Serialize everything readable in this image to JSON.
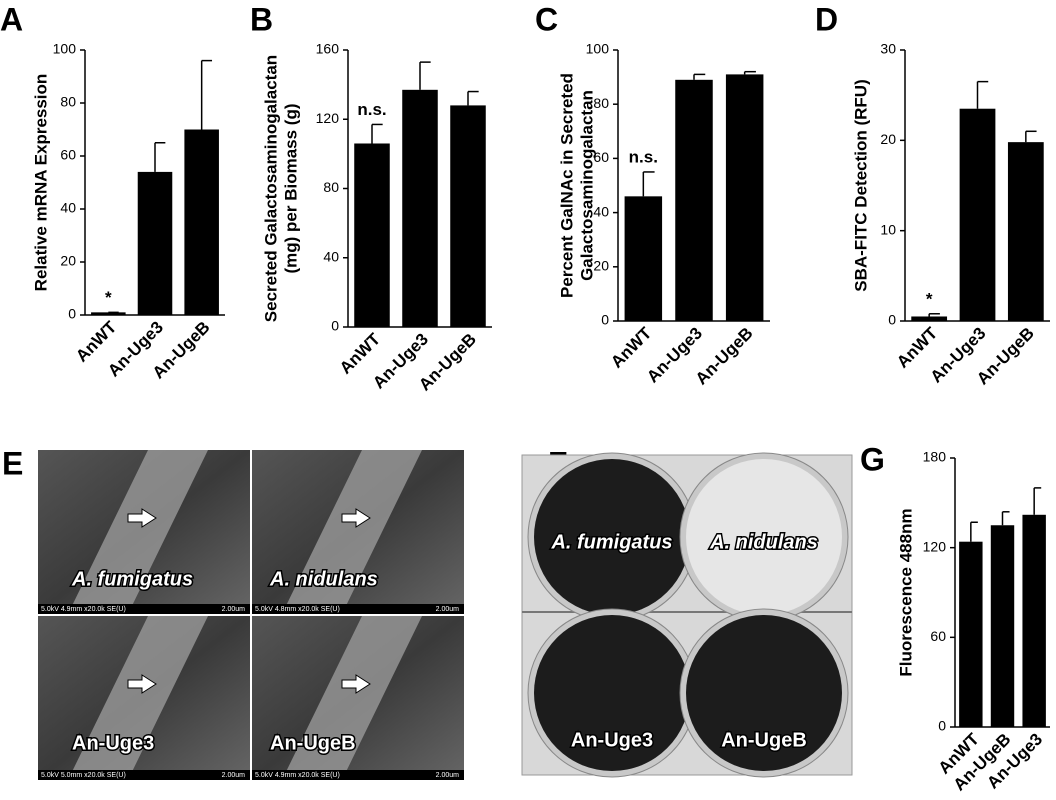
{
  "chart_data": [
    {
      "type": "bar",
      "panel": "A",
      "ylabel": [
        "Relative mRNA Expression"
      ],
      "categories": [
        "AnWT",
        "An-Uge3",
        "An-UgeB"
      ],
      "values": [
        1,
        54,
        70
      ],
      "errors": [
        0,
        11,
        26
      ],
      "annotations": [
        "*",
        null,
        null
      ],
      "color": "#000000",
      "ylim": [
        0,
        100
      ],
      "yticks": [
        0,
        20,
        40,
        60,
        80,
        100
      ]
    },
    {
      "type": "bar",
      "panel": "B",
      "ylabel": [
        "Secreted Galactosaminogalactan",
        "(mg) per Biomass (g)"
      ],
      "categories": [
        "AnWT",
        "An-Uge3",
        "An-UgeB"
      ],
      "values": [
        106,
        137,
        128
      ],
      "errors": [
        11,
        16,
        8
      ],
      "annotations": [
        "n.s.",
        null,
        null
      ],
      "color": "#000000",
      "ylim": [
        0,
        160
      ],
      "yticks": [
        0,
        40,
        80,
        120,
        160
      ]
    },
    {
      "type": "bar",
      "panel": "C",
      "ylabel": [
        "Percent GalNAc in Secreted",
        "Galactosaminogalactan"
      ],
      "categories": [
        "AnWT",
        "An-Uge3",
        "An-UgeB"
      ],
      "values": [
        46,
        89,
        91
      ],
      "errors": [
        9,
        2,
        1
      ],
      "annotations": [
        "n.s.",
        null,
        null
      ],
      "color": "#000000",
      "ylim": [
        0,
        100
      ],
      "yticks": [
        0,
        20,
        40,
        60,
        80,
        100
      ]
    },
    {
      "type": "bar",
      "panel": "D",
      "ylabel": [
        "SBA-FITC Detection (RFU)"
      ],
      "categories": [
        "AnWT",
        "An-Uge3",
        "An-UgeB"
      ],
      "values": [
        0.5,
        23.5,
        19.8
      ],
      "errors": [
        0.3,
        3,
        1.2
      ],
      "annotations": [
        "*",
        null,
        null
      ],
      "color": "#000000",
      "ylim": [
        0,
        30
      ],
      "yticks": [
        0,
        10,
        20,
        30
      ]
    },
    {
      "type": "bar",
      "panel": "G",
      "ylabel": [
        "Fluorescence 488nm"
      ],
      "categories": [
        "AnWT",
        "An-UgeB",
        "An-Uge3"
      ],
      "values": [
        124,
        135,
        142
      ],
      "errors": [
        13,
        9,
        18
      ],
      "annotations": [
        null,
        null,
        null
      ],
      "color": "#000000",
      "ylim": [
        0,
        180
      ],
      "yticks": [
        0,
        60,
        120,
        180
      ]
    }
  ],
  "images": [
    {
      "panel": "E",
      "tiles": [
        {
          "label": "A. fumigatus",
          "info": "5.0kV 4.9mm x20.0k SE(U)",
          "scale": "2.00um"
        },
        {
          "label": "A. nidulans",
          "info": "5.0kV 4.8mm x20.0k SE(U)",
          "scale": "2.00um"
        },
        {
          "label": "An-Uge3",
          "info": "5.0kV 5.0mm x20.0k SE(U)",
          "scale": "2.00um"
        },
        {
          "label": "An-UgeB",
          "info": "5.0kV 4.9mm x20.0k SE(U)",
          "scale": "2.00um"
        }
      ]
    },
    {
      "panel": "F",
      "tiles": [
        {
          "label": "A. fumigatus"
        },
        {
          "label": "A. nidulans"
        },
        {
          "label": "An-Uge3"
        },
        {
          "label": "An-UgeB"
        }
      ]
    }
  ]
}
